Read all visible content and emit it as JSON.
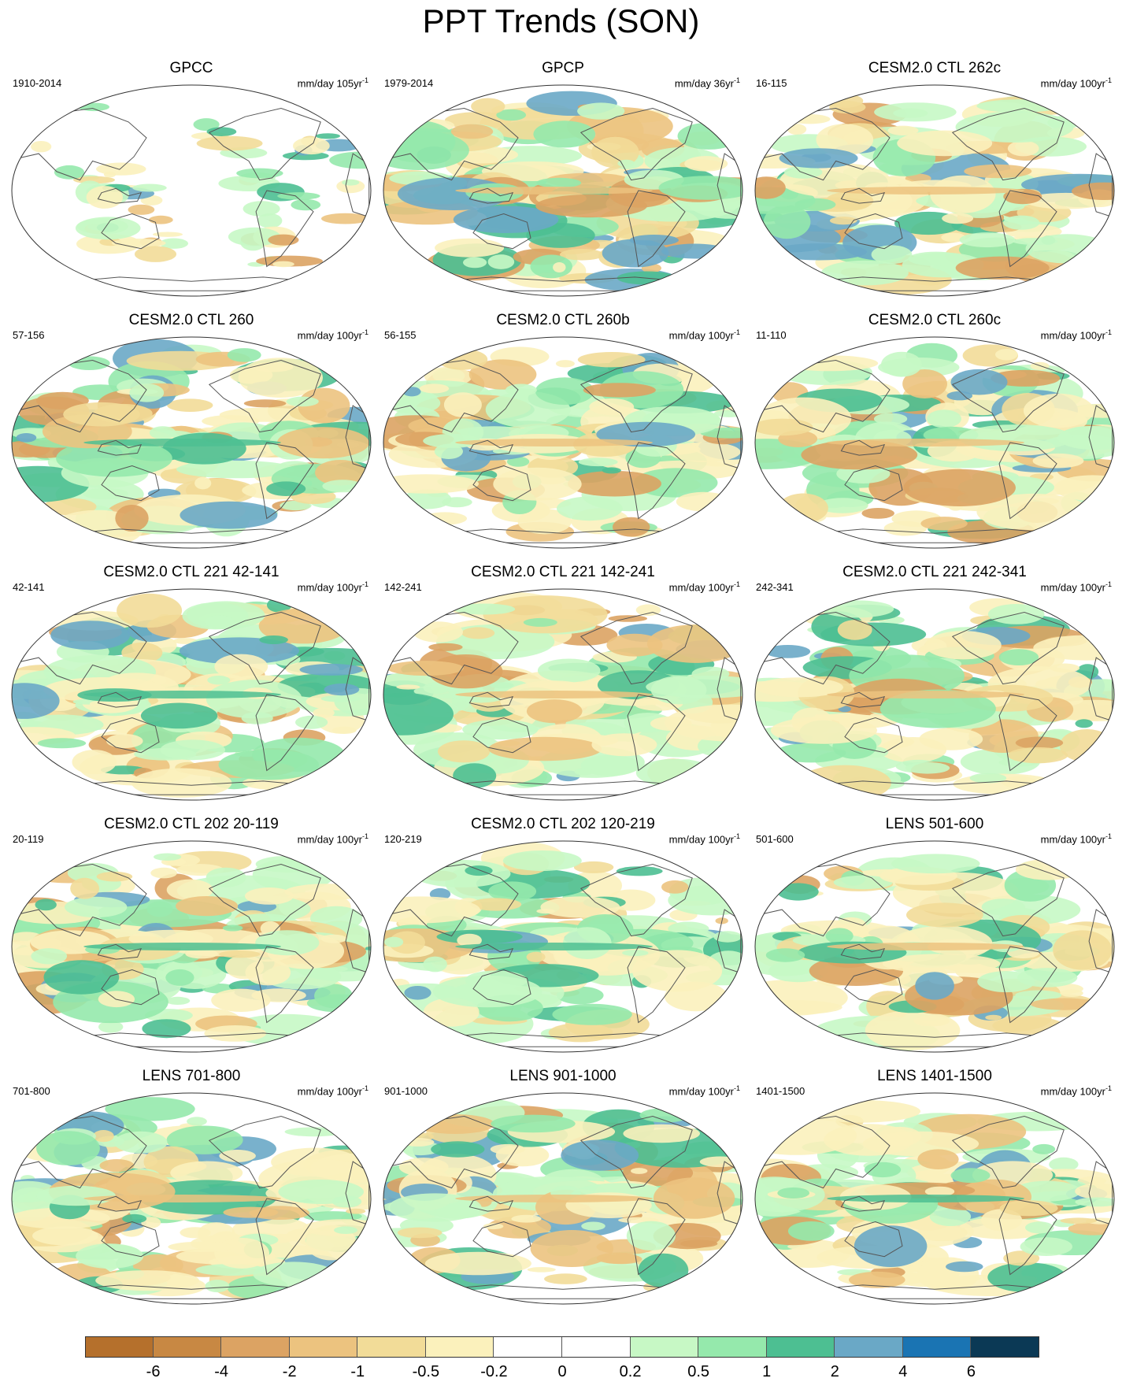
{
  "figure": {
    "title": "PPT Trends (SON)"
  },
  "panels": [
    {
      "title": "GPCC",
      "period": "1910-2014",
      "units": "mm/day 105yr",
      "units_exp": "-1",
      "coverage": "land"
    },
    {
      "title": "GPCP",
      "period": "1979-2014",
      "units": "mm/day 36yr",
      "units_exp": "-1",
      "coverage": "global-strong"
    },
    {
      "title": "CESM2.0 CTL 262c",
      "period": "16-115",
      "units": "mm/day 100yr",
      "units_exp": "-1",
      "coverage": "global"
    },
    {
      "title": "CESM2.0 CTL 260",
      "period": "57-156",
      "units": "mm/day 100yr",
      "units_exp": "-1",
      "coverage": "global"
    },
    {
      "title": "CESM2.0 CTL 260b",
      "period": "56-155",
      "units": "mm/day 100yr",
      "units_exp": "-1",
      "coverage": "global"
    },
    {
      "title": "CESM2.0 CTL 260c",
      "period": "11-110",
      "units": "mm/day 100yr",
      "units_exp": "-1",
      "coverage": "global"
    },
    {
      "title": "CESM2.0 CTL 221 42-141",
      "period": "42-141",
      "units": "mm/day 100yr",
      "units_exp": "-1",
      "coverage": "global"
    },
    {
      "title": "CESM2.0 CTL 221 142-241",
      "period": "142-241",
      "units": "mm/day 100yr",
      "units_exp": "-1",
      "coverage": "global"
    },
    {
      "title": "CESM2.0 CTL 221 242-341",
      "period": "242-341",
      "units": "mm/day 100yr",
      "units_exp": "-1",
      "coverage": "global"
    },
    {
      "title": "CESM2.0 CTL 202 20-119",
      "period": "20-119",
      "units": "mm/day 100yr",
      "units_exp": "-1",
      "coverage": "global"
    },
    {
      "title": "CESM2.0 CTL 202 120-219",
      "period": "120-219",
      "units": "mm/day 100yr",
      "units_exp": "-1",
      "coverage": "global"
    },
    {
      "title": "LENS 501-600",
      "period": "501-600",
      "units": "mm/day 100yr",
      "units_exp": "-1",
      "coverage": "global"
    },
    {
      "title": "LENS 701-800",
      "period": "701-800",
      "units": "mm/day 100yr",
      "units_exp": "-1",
      "coverage": "global"
    },
    {
      "title": "LENS 901-1000",
      "period": "901-1000",
      "units": "mm/day 100yr",
      "units_exp": "-1",
      "coverage": "global"
    },
    {
      "title": "LENS 1401-1500",
      "period": "1401-1500",
      "units": "mm/day 100yr",
      "units_exp": "-1",
      "coverage": "global"
    }
  ],
  "colorbar": {
    "labels": [
      "-6",
      "-4",
      "-2",
      "-1",
      "-0.5",
      "-0.2",
      "0",
      "0.2",
      "0.5",
      "1",
      "2",
      "4",
      "6"
    ],
    "colors": [
      "#b5702c",
      "#c88843",
      "#dca363",
      "#ecc37f",
      "#f2dc98",
      "#fbf1bc",
      "#ffffff",
      "#ffffff",
      "#c7f8c5",
      "#95e9ac",
      "#4dbf92",
      "#6aa8c6",
      "#1a74b3",
      "#0b3955"
    ]
  }
}
